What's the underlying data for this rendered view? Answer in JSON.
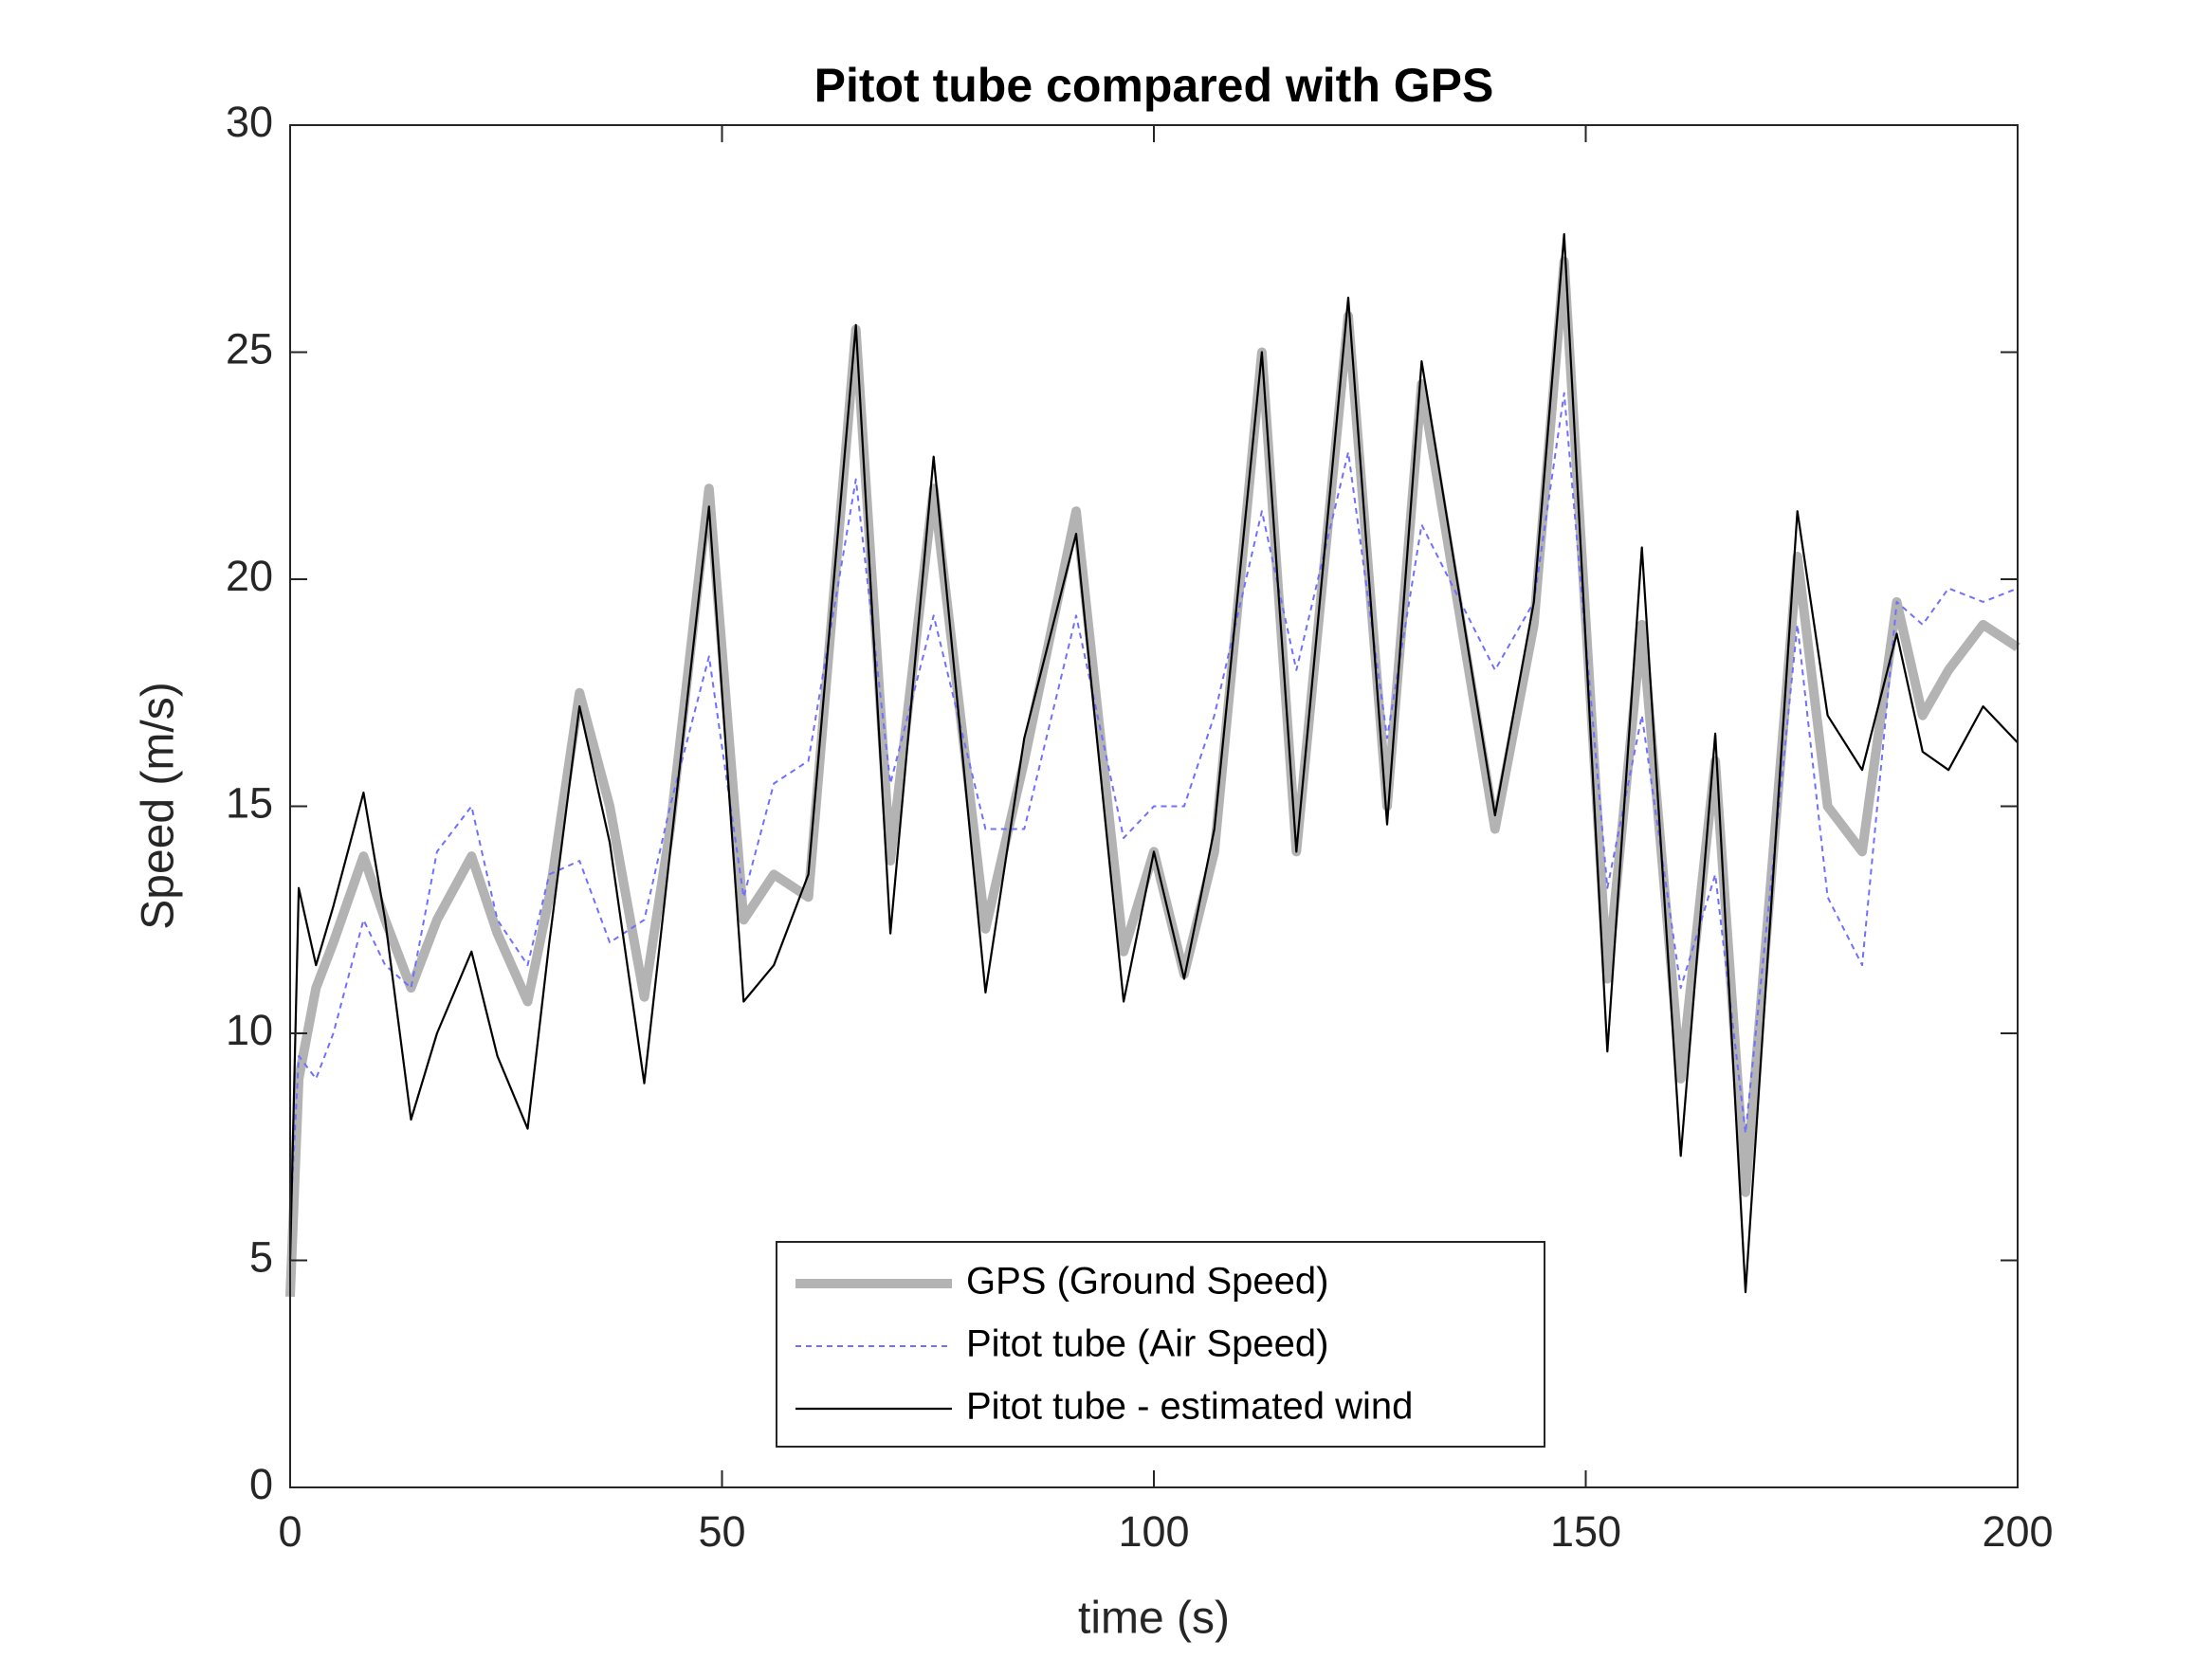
{
  "chart_data": {
    "type": "line",
    "title": "Pitot tube compared with GPS",
    "x_label": "time (s)",
    "y_label": "Speed (m/s)",
    "x": [
      0,
      1,
      3,
      5,
      8.5,
      11,
      14,
      17,
      21,
      24,
      27.5,
      30,
      33.5,
      37,
      41,
      44,
      48.5,
      52.5,
      56,
      60,
      65.5,
      69.5,
      74.5,
      80.5,
      85,
      91,
      96.5,
      100,
      103.5,
      107,
      112.5,
      116.5,
      122.5,
      127,
      131,
      139.5,
      144,
      147.5,
      152.5,
      156.5,
      161,
      165,
      168.5,
      174.5,
      178,
      182,
      186,
      189,
      192,
      196,
      200
    ],
    "series": [
      {
        "name": "GPS (Ground Speed)",
        "color": "#b3b3b3",
        "values": [
          4.2,
          9,
          11,
          12,
          13.9,
          12.5,
          11,
          12.5,
          13.9,
          12.2,
          10.7,
          13,
          17.5,
          15,
          10.8,
          14.5,
          22,
          12.5,
          13.5,
          13,
          25.5,
          13.8,
          22,
          12.3,
          16,
          21.5,
          11.8,
          14,
          11.3,
          14,
          25,
          14,
          25.8,
          15,
          24.3,
          14.5,
          19,
          27,
          11.2,
          19,
          9,
          16,
          6.5,
          20.5,
          15,
          14,
          19.5,
          17,
          18,
          19,
          18.5
        ]
      },
      {
        "name": "Pitot tube (Air Speed)",
        "color": "#7070ff",
        "values": [
          5.8,
          9.5,
          9,
          10,
          12.5,
          11.5,
          11,
          14,
          15,
          12.5,
          11.5,
          13.5,
          13.8,
          12,
          12.5,
          15,
          18.3,
          13,
          15.5,
          16,
          22.2,
          15.5,
          19.2,
          14.5,
          14.5,
          19.2,
          14.3,
          15,
          15,
          17,
          21.5,
          18,
          22.8,
          16.5,
          21.2,
          18,
          19.5,
          24.1,
          13.2,
          17,
          11,
          13.5,
          7.8,
          19,
          13,
          11.5,
          19.5,
          19,
          19.8,
          19.5,
          19.8
        ]
      },
      {
        "name": "Pitot tube - estimated wind",
        "color": "#000000",
        "values": [
          5,
          13.2,
          11.5,
          12.8,
          15.3,
          12.5,
          8.1,
          10,
          11.8,
          9.5,
          7.9,
          12,
          17.2,
          14.2,
          8.9,
          14,
          21.6,
          10.7,
          11.5,
          13.5,
          25.6,
          12.2,
          22.7,
          10.9,
          16.5,
          21,
          10.7,
          14,
          11.2,
          14.5,
          25,
          14,
          26.2,
          14.6,
          24.8,
          14.8,
          19.5,
          27.6,
          9.6,
          20.7,
          7.3,
          16.6,
          4.3,
          21.5,
          17,
          15.8,
          18.8,
          16.2,
          15.8,
          17.2,
          16.4
        ]
      }
    ],
    "xlim": [
      0,
      200
    ],
    "xticks": [
      0,
      50,
      100,
      150,
      200
    ],
    "ylim": [
      0,
      30
    ],
    "yticks": [
      0,
      5,
      10,
      15,
      20,
      25,
      30
    ],
    "legend_location": "south"
  }
}
